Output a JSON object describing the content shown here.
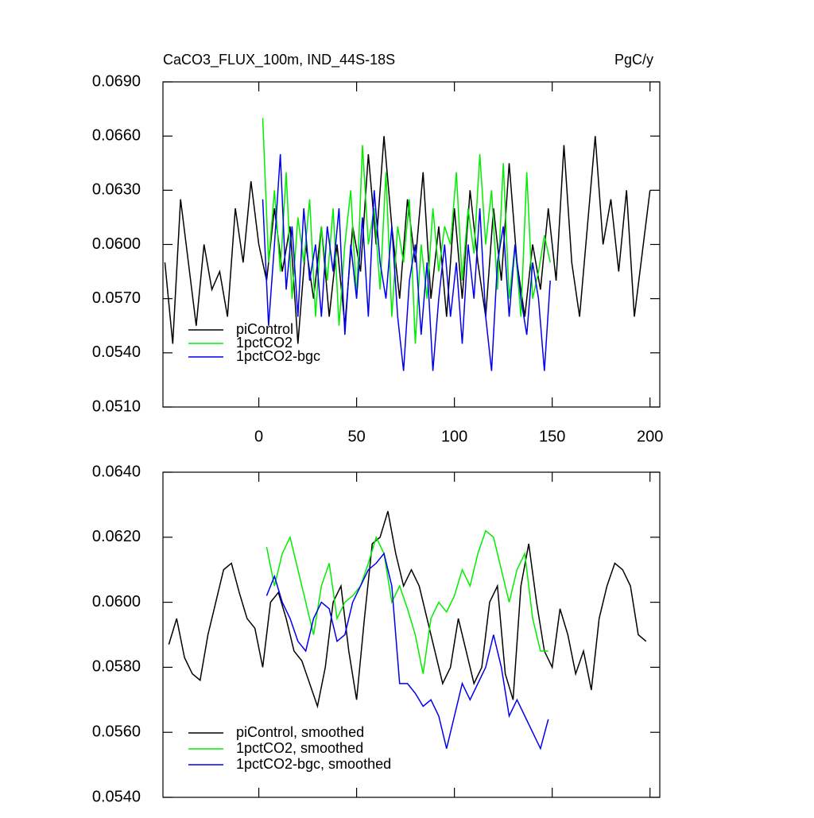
{
  "chart_data": [
    {
      "type": "line",
      "title": "CaCO3_FLUX_100m, IND_44S-18S",
      "subtitle": "PgC/y",
      "xlim": [
        -49,
        205
      ],
      "xticks": [
        0,
        50,
        100,
        150,
        200
      ],
      "ylim": [
        0.051,
        0.069
      ],
      "yticks": [
        {
          "value": 0.051,
          "label": "0.0510"
        },
        {
          "value": 0.054,
          "label": "0.0540"
        },
        {
          "value": 0.057,
          "label": "0.0570"
        },
        {
          "value": 0.06,
          "label": "0.0600"
        },
        {
          "value": 0.063,
          "label": "0.0630"
        },
        {
          "value": 0.066,
          "label": "0.0660"
        },
        {
          "value": 0.069,
          "label": "0.0690"
        }
      ],
      "legend": "lower left",
      "series": [
        {
          "name": "piControl",
          "color": "#000000",
          "x": [
            -48,
            -44,
            -40,
            -36,
            -32,
            -28,
            -24,
            -20,
            -16,
            -12,
            -8,
            -4,
            0,
            4,
            8,
            12,
            16,
            20,
            24,
            28,
            32,
            36,
            40,
            44,
            48,
            52,
            56,
            60,
            64,
            68,
            72,
            76,
            80,
            84,
            88,
            92,
            96,
            100,
            104,
            108,
            112,
            116,
            120,
            124,
            128,
            132,
            136,
            140,
            144,
            148,
            152,
            156,
            160,
            164,
            168,
            172,
            176,
            180,
            184,
            188,
            192,
            196,
            200
          ],
          "values": [
            0.059,
            0.0545,
            0.0625,
            0.059,
            0.0555,
            0.06,
            0.0575,
            0.0585,
            0.056,
            0.062,
            0.059,
            0.0635,
            0.06,
            0.058,
            0.062,
            0.0585,
            0.061,
            0.0545,
            0.06,
            0.057,
            0.061,
            0.056,
            0.06,
            0.0555,
            0.061,
            0.0585,
            0.065,
            0.06,
            0.066,
            0.061,
            0.057,
            0.0625,
            0.059,
            0.064,
            0.057,
            0.061,
            0.056,
            0.062,
            0.057,
            0.063,
            0.059,
            0.056,
            0.062,
            0.058,
            0.0645,
            0.059,
            0.056,
            0.06,
            0.0575,
            0.062,
            0.058,
            0.0655,
            0.059,
            0.056,
            0.061,
            0.066,
            0.06,
            0.0625,
            0.0585,
            0.063,
            0.056,
            0.0595,
            0.063
          ]
        },
        {
          "name": "1pctCO2",
          "color": "#00ee00",
          "x": [
            2,
            5,
            8,
            11,
            14,
            17,
            20,
            23,
            26,
            29,
            32,
            35,
            38,
            41,
            44,
            47,
            50,
            53,
            56,
            59,
            62,
            65,
            68,
            71,
            74,
            77,
            80,
            83,
            86,
            89,
            92,
            95,
            98,
            101,
            104,
            107,
            110,
            113,
            116,
            119,
            122,
            125,
            128,
            131,
            134,
            137,
            140,
            143,
            146,
            149
          ],
          "values": [
            0.067,
            0.059,
            0.063,
            0.0585,
            0.064,
            0.057,
            0.0615,
            0.059,
            0.0625,
            0.056,
            0.061,
            0.058,
            0.062,
            0.0555,
            0.06,
            0.063,
            0.057,
            0.0655,
            0.06,
            0.062,
            0.0575,
            0.064,
            0.056,
            0.061,
            0.059,
            0.0625,
            0.0545,
            0.06,
            0.057,
            0.062,
            0.0585,
            0.061,
            0.06,
            0.064,
            0.058,
            0.062,
            0.0595,
            0.065,
            0.06,
            0.063,
            0.0575,
            0.0645,
            0.057,
            0.06,
            0.056,
            0.064,
            0.057,
            0.0585,
            0.0605,
            0.059
          ]
        },
        {
          "name": "1pctCO2-bgc",
          "color": "#0000ee",
          "x": [
            2,
            5,
            8,
            11,
            14,
            17,
            20,
            23,
            26,
            29,
            32,
            35,
            38,
            41,
            44,
            47,
            50,
            53,
            56,
            59,
            62,
            65,
            68,
            71,
            74,
            77,
            80,
            83,
            86,
            89,
            92,
            95,
            98,
            101,
            104,
            107,
            110,
            113,
            116,
            119,
            122,
            125,
            128,
            131,
            134,
            137,
            140,
            143,
            146,
            149
          ],
          "values": [
            0.0625,
            0.0555,
            0.06,
            0.065,
            0.0575,
            0.061,
            0.056,
            0.062,
            0.058,
            0.06,
            0.056,
            0.061,
            0.0585,
            0.062,
            0.055,
            0.06,
            0.057,
            0.0615,
            0.056,
            0.063,
            0.059,
            0.057,
            0.061,
            0.056,
            0.053,
            0.058,
            0.06,
            0.055,
            0.059,
            0.053,
            0.057,
            0.06,
            0.056,
            0.059,
            0.0545,
            0.06,
            0.057,
            0.062,
            0.056,
            0.053,
            0.059,
            0.061,
            0.056,
            0.06,
            0.057,
            0.055,
            0.059,
            0.057,
            0.053,
            0.058
          ]
        }
      ]
    },
    {
      "type": "line",
      "xlim": [
        -49,
        205
      ],
      "xticks": [
        0,
        50,
        100,
        150,
        200
      ],
      "xtick_labels": false,
      "ylim": [
        0.054,
        0.064
      ],
      "yticks": [
        {
          "value": 0.054,
          "label": "0.0540"
        },
        {
          "value": 0.056,
          "label": "0.0560"
        },
        {
          "value": 0.058,
          "label": "0.0580"
        },
        {
          "value": 0.06,
          "label": "0.0600"
        },
        {
          "value": 0.062,
          "label": "0.0620"
        },
        {
          "value": 0.064,
          "label": "0.0640"
        }
      ],
      "legend": "lower left",
      "series": [
        {
          "name": "piControl, smoothed",
          "color": "#000000",
          "x": [
            -46,
            -42,
            -38,
            -34,
            -30,
            -26,
            -22,
            -18,
            -14,
            -10,
            -6,
            -2,
            2,
            6,
            10,
            14,
            18,
            22,
            26,
            30,
            34,
            38,
            42,
            46,
            50,
            54,
            58,
            62,
            66,
            70,
            74,
            78,
            82,
            86,
            90,
            94,
            98,
            102,
            106,
            110,
            114,
            118,
            122,
            126,
            130,
            134,
            138,
            142,
            146,
            150,
            154,
            158,
            162,
            166,
            170,
            174,
            178,
            182,
            186,
            190,
            194,
            198
          ],
          "values": [
            0.0587,
            0.0595,
            0.0583,
            0.0578,
            0.0576,
            0.059,
            0.06,
            0.061,
            0.0612,
            0.0603,
            0.0595,
            0.0592,
            0.058,
            0.06,
            0.0603,
            0.0595,
            0.0585,
            0.0582,
            0.0575,
            0.0568,
            0.058,
            0.06,
            0.0605,
            0.0585,
            0.057,
            0.0595,
            0.0618,
            0.062,
            0.0628,
            0.0615,
            0.0605,
            0.061,
            0.0605,
            0.0595,
            0.0585,
            0.0575,
            0.058,
            0.0595,
            0.0585,
            0.0575,
            0.058,
            0.06,
            0.0605,
            0.0578,
            0.057,
            0.0605,
            0.0618,
            0.06,
            0.0585,
            0.058,
            0.0598,
            0.059,
            0.0578,
            0.0585,
            0.0573,
            0.0595,
            0.0605,
            0.0612,
            0.061,
            0.0605,
            0.059,
            0.0588
          ]
        },
        {
          "name": "1pctCO2, smoothed",
          "color": "#00ee00",
          "x": [
            4,
            8,
            12,
            16,
            20,
            24,
            28,
            32,
            36,
            40,
            44,
            48,
            52,
            56,
            60,
            64,
            68,
            72,
            76,
            80,
            84,
            88,
            92,
            96,
            100,
            104,
            108,
            112,
            116,
            120,
            124,
            128,
            132,
            136,
            140,
            144,
            148
          ],
          "values": [
            0.0617,
            0.0605,
            0.0615,
            0.062,
            0.061,
            0.06,
            0.059,
            0.0605,
            0.0612,
            0.0595,
            0.06,
            0.0602,
            0.0605,
            0.0612,
            0.062,
            0.0615,
            0.06,
            0.0605,
            0.0598,
            0.059,
            0.0578,
            0.0595,
            0.06,
            0.0597,
            0.0602,
            0.061,
            0.0605,
            0.0615,
            0.0622,
            0.062,
            0.061,
            0.06,
            0.061,
            0.0615,
            0.0595,
            0.0585,
            0.0585
          ]
        },
        {
          "name": "1pctCO2-bgc, smoothed",
          "color": "#0000ee",
          "x": [
            4,
            8,
            12,
            16,
            20,
            24,
            28,
            32,
            36,
            40,
            44,
            48,
            52,
            56,
            60,
            64,
            68,
            72,
            76,
            80,
            84,
            88,
            92,
            96,
            100,
            104,
            108,
            112,
            116,
            120,
            124,
            128,
            132,
            136,
            140,
            144,
            148
          ],
          "values": [
            0.0602,
            0.0608,
            0.06,
            0.0595,
            0.0588,
            0.0585,
            0.0595,
            0.06,
            0.0598,
            0.0588,
            0.059,
            0.06,
            0.0605,
            0.061,
            0.0612,
            0.0615,
            0.0605,
            0.0575,
            0.0575,
            0.0572,
            0.0568,
            0.057,
            0.0565,
            0.0555,
            0.0565,
            0.0575,
            0.057,
            0.0575,
            0.058,
            0.059,
            0.058,
            0.0565,
            0.057,
            0.0565,
            0.056,
            0.0555,
            0.0564
          ]
        }
      ]
    }
  ]
}
